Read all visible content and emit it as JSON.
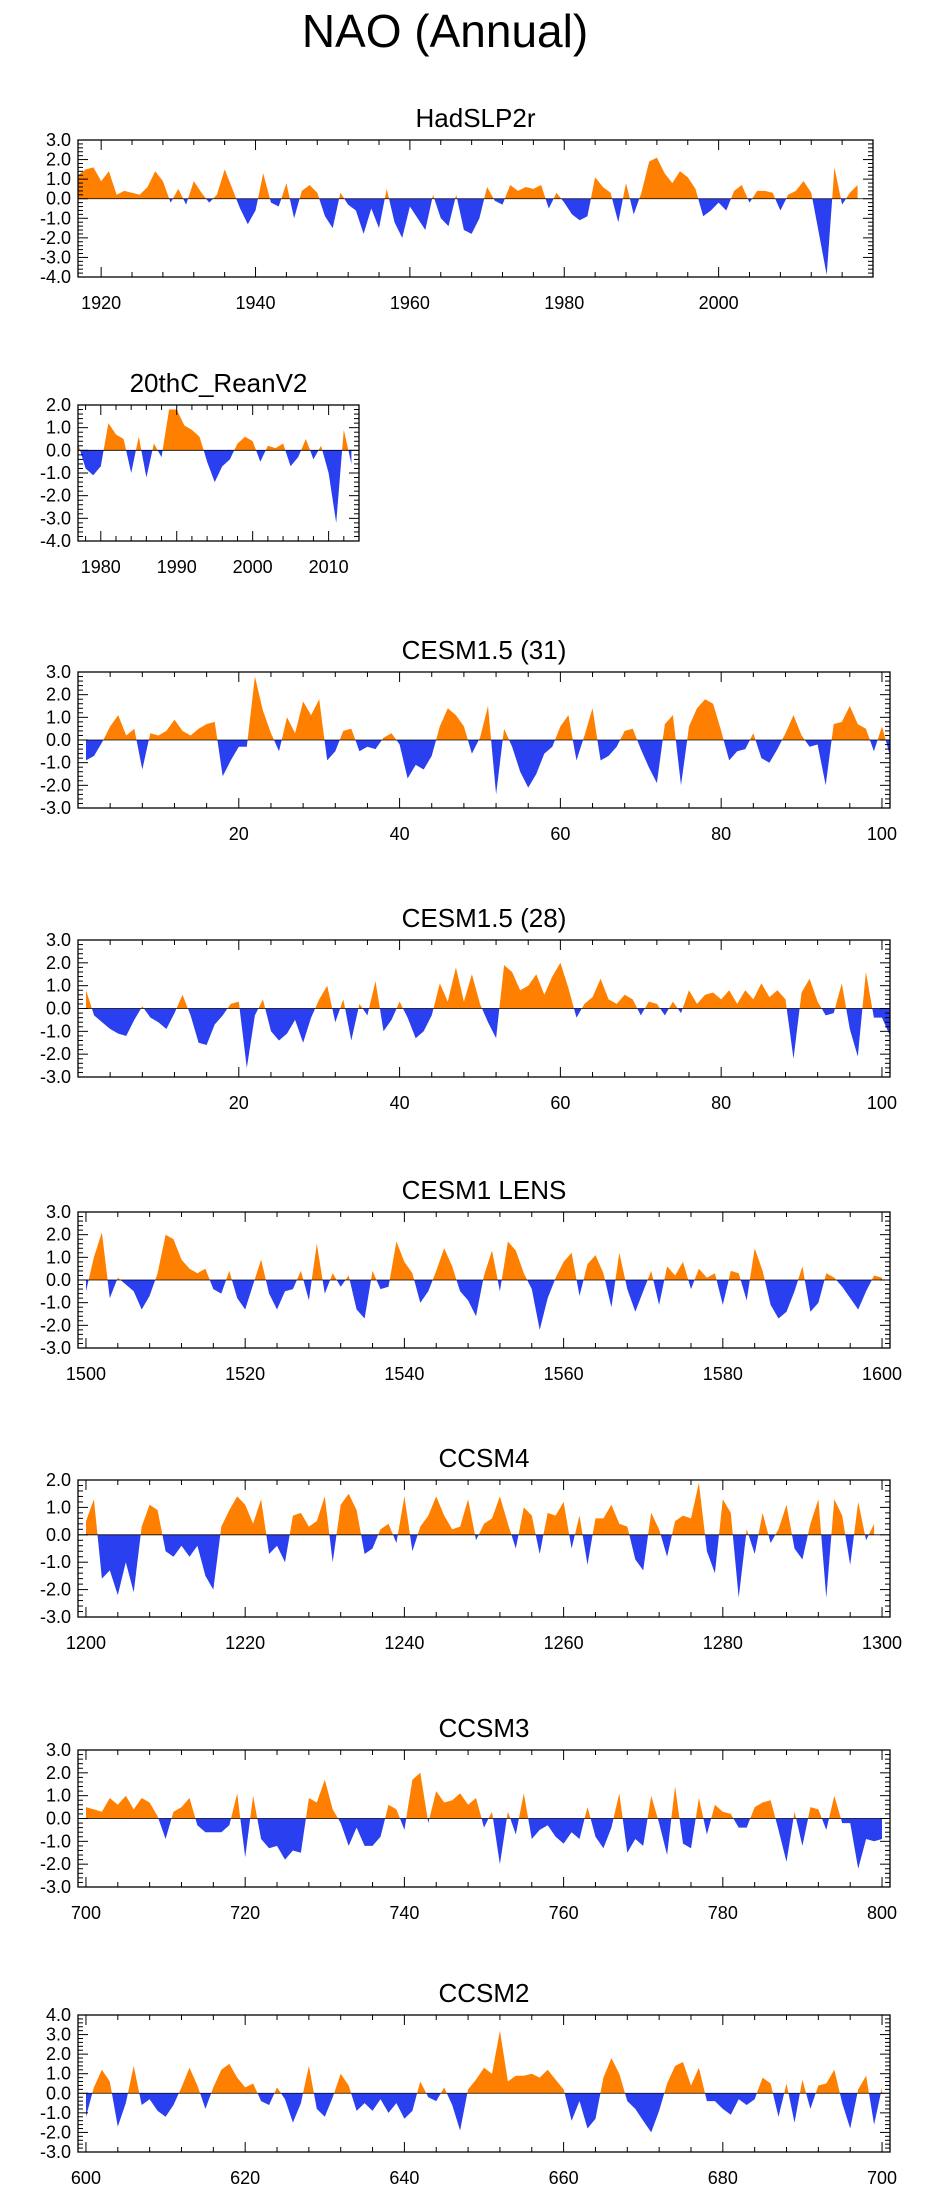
{
  "title": "NAO (Annual)",
  "colors": {
    "positive": "#ff8000",
    "negative": "#2a3ff0",
    "frame": "#000000"
  },
  "chart_data": [
    {
      "type": "area",
      "title": "HadSLP2r",
      "xlim": [
        1917,
        2020
      ],
      "ylim": [
        -4,
        3
      ],
      "xticks": [
        1920,
        1940,
        1960,
        1980,
        2000
      ],
      "yticks": [
        3,
        2,
        1,
        0,
        -1,
        -2,
        -3,
        -4
      ],
      "ytick_labels": [
        "3.0",
        "2.0",
        "1.0",
        "0.0",
        "-1.0",
        "-2.0",
        "-3.0",
        "-4.0"
      ],
      "x_start": 1917,
      "x_step": 1,
      "values": [
        1.2,
        1.5,
        1.6,
        0.9,
        1.4,
        0.2,
        0.4,
        0.3,
        0.2,
        0.6,
        1.4,
        0.9,
        -0.2,
        0.5,
        -0.3,
        0.9,
        0.3,
        -0.2,
        0.2,
        1.5,
        0.5,
        -0.5,
        -1.3,
        -0.6,
        1.3,
        -0.2,
        -0.4,
        0.8,
        -1.0,
        0.4,
        0.7,
        0.3,
        -0.9,
        -1.5,
        0.3,
        -0.3,
        -0.6,
        -1.8,
        -0.5,
        -1.5,
        0.5,
        -1.2,
        -2.0,
        -0.4,
        -1.0,
        -1.6,
        0.2,
        -1.0,
        -1.4,
        0.2,
        -1.6,
        -1.8,
        -1.0,
        0.6,
        -0.1,
        -0.3,
        0.7,
        0.4,
        0.6,
        0.5,
        0.7,
        -0.5,
        0.3,
        -0.2,
        -0.8,
        -1.1,
        -0.9,
        1.1,
        0.6,
        0.3,
        -1.2,
        0.8,
        -0.8,
        0.3,
        1.9,
        2.1,
        1.3,
        0.8,
        1.4,
        1.1,
        0.5,
        -0.9,
        -0.6,
        -0.2,
        -0.6,
        0.4,
        0.7,
        -0.2,
        0.4,
        0.4,
        0.3,
        -0.6,
        0.2,
        0.4,
        0.9,
        0.3,
        -1.8,
        -3.9,
        1.6,
        -0.3,
        0.3,
        0.7
      ]
    },
    {
      "type": "area",
      "title": "20thC_ReanV2",
      "xlim": [
        1977,
        2014
      ],
      "ylim": [
        -4,
        2
      ],
      "xticks": [
        1980,
        1990,
        2000,
        2010
      ],
      "yticks": [
        2,
        1,
        0,
        -1,
        -2,
        -3,
        -4
      ],
      "ytick_labels": [
        "2.0",
        "1.0",
        "0.0",
        "-1.0",
        "-2.0",
        "-3.0",
        "-4.0"
      ],
      "x_start": 1977,
      "x_step": 1,
      "values": [
        0.3,
        -0.8,
        -1.1,
        -0.7,
        1.2,
        0.7,
        0.5,
        -1.0,
        0.6,
        -1.2,
        0.3,
        -0.3,
        1.8,
        1.8,
        1.1,
        0.9,
        0.6,
        -0.5,
        -1.4,
        -0.7,
        -0.4,
        0.3,
        0.6,
        0.4,
        -0.5,
        0.2,
        0.1,
        0.3,
        -0.7,
        -0.3,
        0.5,
        -0.4,
        0.2,
        -1.0,
        -3.2,
        0.9,
        -0.6
      ]
    },
    {
      "type": "area",
      "title": "CESM1.5 (31)",
      "xlim": [
        0,
        101
      ],
      "ylim": [
        -3,
        3
      ],
      "xticks": [
        20,
        40,
        60,
        80,
        100
      ],
      "yticks": [
        3,
        2,
        1,
        0,
        -1,
        -2,
        -3
      ],
      "ytick_labels": [
        "3.0",
        "2.0",
        "1.0",
        "0.0",
        "-1.0",
        "-2.0",
        "-3.0"
      ],
      "x_start": 1,
      "x_step": 1,
      "values": [
        -0.9,
        -0.7,
        -0.1,
        0.6,
        1.1,
        0.2,
        0.5,
        -1.3,
        0.3,
        0.2,
        0.4,
        0.9,
        0.4,
        0.2,
        0.5,
        0.7,
        0.8,
        -1.6,
        -0.9,
        -0.3,
        -0.3,
        2.8,
        1.3,
        0.3,
        -0.5,
        1.0,
        0.3,
        1.7,
        1.1,
        1.8,
        -0.9,
        -0.5,
        0.4,
        0.5,
        -0.5,
        -0.3,
        -0.4,
        0.1,
        0.3,
        -0.2,
        -1.7,
        -1.1,
        -1.3,
        -0.7,
        0.6,
        1.4,
        1.1,
        0.6,
        -0.6,
        0.1,
        1.5,
        -2.4,
        0.5,
        -0.3,
        -1.4,
        -2.1,
        -1.5,
        -0.6,
        -0.3,
        0.6,
        1.1,
        -0.9,
        0.2,
        1.4,
        -0.9,
        -0.7,
        -0.3,
        0.4,
        0.5,
        -0.4,
        -1.2,
        -1.9,
        0.7,
        1.1,
        -2.0,
        0.6,
        1.4,
        1.8,
        1.6,
        0.4,
        -0.9,
        -0.5,
        -0.4,
        0.3,
        -0.8,
        -1.0,
        -0.4,
        0.3,
        1.1,
        0.2,
        -0.3,
        -0.2,
        -2.0,
        0.7,
        0.8,
        1.5,
        0.7,
        0.5,
        -0.5,
        0.6,
        -0.7
      ]
    },
    {
      "type": "area",
      "title": "CESM1.5 (28)",
      "xlim": [
        0,
        101
      ],
      "ylim": [
        -3,
        3
      ],
      "xticks": [
        20,
        40,
        60,
        80,
        100
      ],
      "yticks": [
        3,
        2,
        1,
        0,
        -1,
        -2,
        -3
      ],
      "ytick_labels": [
        "3.0",
        "2.0",
        "1.0",
        "0.0",
        "-1.0",
        "-2.0",
        "-3.0"
      ],
      "x_start": 1,
      "x_step": 1,
      "values": [
        0.8,
        -0.3,
        -0.6,
        -0.9,
        -1.1,
        -1.2,
        -0.5,
        0.1,
        -0.4,
        -0.6,
        -0.9,
        -0.2,
        0.6,
        -0.3,
        -1.5,
        -1.6,
        -0.7,
        -0.3,
        0.2,
        0.3,
        -2.6,
        -0.3,
        0.4,
        -1.0,
        -1.4,
        -1.1,
        -0.5,
        -1.5,
        -0.4,
        0.4,
        1.0,
        -0.6,
        0.4,
        -1.4,
        0.2,
        -0.3,
        1.2,
        -1.0,
        -0.5,
        0.3,
        -0.4,
        -1.3,
        -1.0,
        -0.3,
        1.1,
        0.3,
        1.8,
        0.3,
        1.5,
        0.2,
        -0.6,
        -1.3,
        1.9,
        1.6,
        0.8,
        1.0,
        1.5,
        0.6,
        1.4,
        2.0,
        0.9,
        -0.4,
        0.2,
        0.5,
        1.3,
        0.4,
        0.2,
        0.6,
        0.4,
        -0.3,
        0.3,
        0.2,
        -0.3,
        0.3,
        -0.2,
        0.8,
        0.2,
        0.6,
        0.7,
        0.4,
        0.8,
        0.2,
        0.8,
        0.4,
        1.1,
        0.5,
        0.8,
        0.4,
        -2.2,
        0.7,
        1.3,
        0.3,
        -0.3,
        -0.2,
        1.1,
        -0.9,
        -2.1,
        1.6,
        -0.4,
        -0.4,
        -1.2
      ]
    },
    {
      "type": "area",
      "title": "CESM1 LENS",
      "xlim": [
        1499,
        1601
      ],
      "ylim": [
        -3,
        3
      ],
      "xticks": [
        1500,
        1520,
        1540,
        1560,
        1580,
        1600
      ],
      "yticks": [
        3,
        2,
        1,
        0,
        -1,
        -2,
        -3
      ],
      "ytick_labels": [
        "3.0",
        "2.0",
        "1.0",
        "0.0",
        "-1.0",
        "-2.0",
        "-3.0"
      ],
      "x_start": 1500,
      "x_step": 1,
      "values": [
        -0.5,
        1.0,
        2.1,
        -0.8,
        0.1,
        -0.2,
        -0.5,
        -1.3,
        -0.7,
        0.3,
        2.0,
        1.8,
        0.9,
        0.5,
        0.3,
        0.5,
        -0.4,
        -0.6,
        0.4,
        -0.8,
        -1.3,
        -0.2,
        0.9,
        -0.6,
        -1.3,
        -0.5,
        -0.4,
        0.4,
        -0.9,
        1.6,
        -0.6,
        0.3,
        -0.3,
        0.2,
        -1.3,
        -1.7,
        0.4,
        -0.4,
        -0.3,
        1.7,
        0.8,
        0.3,
        -1.0,
        -0.5,
        0.4,
        1.4,
        0.6,
        -0.5,
        -0.9,
        -1.6,
        0.2,
        1.3,
        -0.5,
        1.7,
        1.3,
        0.3,
        -0.4,
        -2.2,
        -0.8,
        0.1,
        0.8,
        1.2,
        -0.7,
        0.7,
        1.1,
        0.3,
        -1.2,
        1.2,
        -0.4,
        -1.4,
        -0.5,
        0.4,
        -1.1,
        0.6,
        0.2,
        0.8,
        -0.4,
        0.5,
        0.1,
        0.3,
        -1.1,
        0.4,
        0.3,
        -0.9,
        1.4,
        0.4,
        -1.1,
        -1.7,
        -1.4,
        -0.5,
        0.6,
        -1.4,
        -1.0,
        0.3,
        0.1,
        -0.3,
        -0.8,
        -1.3,
        -0.5,
        0.2,
        0.1
      ]
    },
    {
      "type": "area",
      "title": "CCSM4",
      "xlim": [
        1199,
        1301
      ],
      "ylim": [
        -3,
        2
      ],
      "xticks": [
        1200,
        1220,
        1240,
        1260,
        1280,
        1300
      ],
      "yticks": [
        2,
        1,
        0,
        -1,
        -2,
        -3
      ],
      "ytick_labels": [
        "2.0",
        "1.0",
        "0.0",
        "-1.0",
        "-2.0",
        "-3.0"
      ],
      "x_start": 1200,
      "x_step": 1,
      "values": [
        0.5,
        1.3,
        -1.6,
        -1.3,
        -2.2,
        -1.0,
        -2.1,
        0.3,
        1.1,
        0.9,
        -0.6,
        -0.8,
        -0.4,
        -0.8,
        -0.4,
        -1.5,
        -2.0,
        0.3,
        0.9,
        1.4,
        1.1,
        0.4,
        1.3,
        -0.7,
        -0.4,
        -1.0,
        0.7,
        0.8,
        0.3,
        0.5,
        1.4,
        -1.0,
        1.1,
        1.5,
        0.9,
        -0.7,
        -0.5,
        0.2,
        0.4,
        -0.3,
        1.4,
        -0.6,
        0.3,
        0.7,
        1.4,
        0.7,
        0.2,
        0.3,
        1.3,
        -0.2,
        0.4,
        0.6,
        1.4,
        0.4,
        -0.5,
        1.0,
        0.7,
        -0.7,
        0.8,
        0.7,
        1.2,
        -0.5,
        0.7,
        -1.1,
        0.6,
        0.6,
        1.1,
        0.4,
        0.3,
        -0.9,
        -1.3,
        0.8,
        0.2,
        -0.8,
        0.5,
        0.7,
        0.6,
        1.9,
        -0.6,
        -1.4,
        1.3,
        0.8,
        -2.3,
        0.2,
        -0.7,
        0.8,
        -0.3,
        0.2,
        1.1,
        -0.5,
        -0.9,
        0.4,
        1.3,
        -2.3,
        1.3,
        0.7,
        -1.1,
        1.2,
        -0.2,
        0.4
      ]
    },
    {
      "type": "area",
      "title": "CCSM3",
      "xlim": [
        699,
        801
      ],
      "ylim": [
        -3,
        3
      ],
      "xticks": [
        700,
        720,
        740,
        760,
        780,
        800
      ],
      "yticks": [
        3,
        2,
        1,
        0,
        -1,
        -2,
        -3
      ],
      "ytick_labels": [
        "3.0",
        "2.0",
        "1.0",
        "0.0",
        "-1.0",
        "-2.0",
        "-3.0"
      ],
      "x_start": 700,
      "x_step": 1,
      "values": [
        0.5,
        0.4,
        0.3,
        0.9,
        0.6,
        1.0,
        0.4,
        0.9,
        0.7,
        0.1,
        -0.9,
        0.3,
        0.5,
        0.9,
        -0.3,
        -0.6,
        -0.6,
        -0.6,
        -0.3,
        1.1,
        -1.7,
        1.0,
        -0.9,
        -1.3,
        -1.2,
        -1.8,
        -1.4,
        -1.5,
        0.9,
        0.7,
        1.7,
        0.4,
        -0.2,
        -1.2,
        -0.4,
        -1.2,
        -1.2,
        -0.8,
        0.6,
        0.4,
        -0.5,
        1.7,
        2.0,
        -0.2,
        1.2,
        0.7,
        0.8,
        1.1,
        0.6,
        0.9,
        -0.4,
        0.3,
        -2.0,
        0.3,
        -0.7,
        1.1,
        -0.9,
        -0.5,
        -0.3,
        -0.8,
        -1.1,
        -0.6,
        -0.9,
        0.5,
        -0.8,
        -1.3,
        -0.4,
        1.1,
        -1.5,
        -0.9,
        -1.2,
        1.0,
        -0.2,
        -1.6,
        1.4,
        -1.1,
        -1.3,
        0.9,
        -0.7,
        0.6,
        0.3,
        0.2,
        -0.4,
        -0.4,
        0.5,
        0.7,
        0.8,
        -0.5,
        -1.9,
        0.3,
        -1.2,
        0.5,
        0.4,
        -0.5,
        1.0,
        -0.2,
        -0.2,
        -2.2,
        -0.9,
        -1.0,
        -0.9
      ]
    },
    {
      "type": "area",
      "title": "CCSM2",
      "xlim": [
        599,
        701
      ],
      "ylim": [
        -3,
        4
      ],
      "xticks": [
        600,
        620,
        640,
        660,
        680,
        700
      ],
      "yticks": [
        4,
        3,
        2,
        1,
        0,
        -1,
        -2,
        -3
      ],
      "ytick_labels": [
        "4.0",
        "3.0",
        "2.0",
        "1.0",
        "0.0",
        "-1.0",
        "-2.0",
        "-3.0"
      ],
      "x_start": 600,
      "x_step": 1,
      "values": [
        -1.2,
        0.3,
        1.2,
        0.6,
        -1.7,
        -0.5,
        1.4,
        -0.6,
        -0.3,
        -0.9,
        -1.2,
        -0.6,
        0.3,
        1.3,
        0.4,
        -0.8,
        0.3,
        1.2,
        1.5,
        0.8,
        0.3,
        0.5,
        -0.4,
        -0.6,
        0.3,
        -0.3,
        -1.5,
        -0.5,
        1.4,
        -0.8,
        -1.2,
        -0.2,
        1.0,
        0.4,
        -0.9,
        -0.5,
        -0.9,
        -0.3,
        -1.0,
        -0.5,
        -1.3,
        -0.9,
        0.6,
        -0.2,
        -0.4,
        0.3,
        -0.6,
        -1.9,
        0.2,
        0.7,
        1.3,
        1.0,
        3.2,
        0.6,
        0.9,
        0.9,
        1.0,
        0.8,
        1.2,
        0.7,
        0.2,
        -1.4,
        -0.4,
        -1.8,
        -1.3,
        0.8,
        1.8,
        1.0,
        -0.4,
        -0.8,
        -1.4,
        -2.0,
        -0.9,
        0.5,
        1.4,
        1.6,
        0.4,
        1.3,
        -0.4,
        -0.4,
        -0.8,
        -1.1,
        -0.3,
        -0.6,
        -0.3,
        0.8,
        0.5,
        -1.2,
        0.5,
        -1.5,
        0.7,
        -0.8,
        0.4,
        0.5,
        1.2,
        -0.5,
        -1.8,
        0.2,
        0.9,
        -1.6,
        0.3
      ]
    }
  ]
}
